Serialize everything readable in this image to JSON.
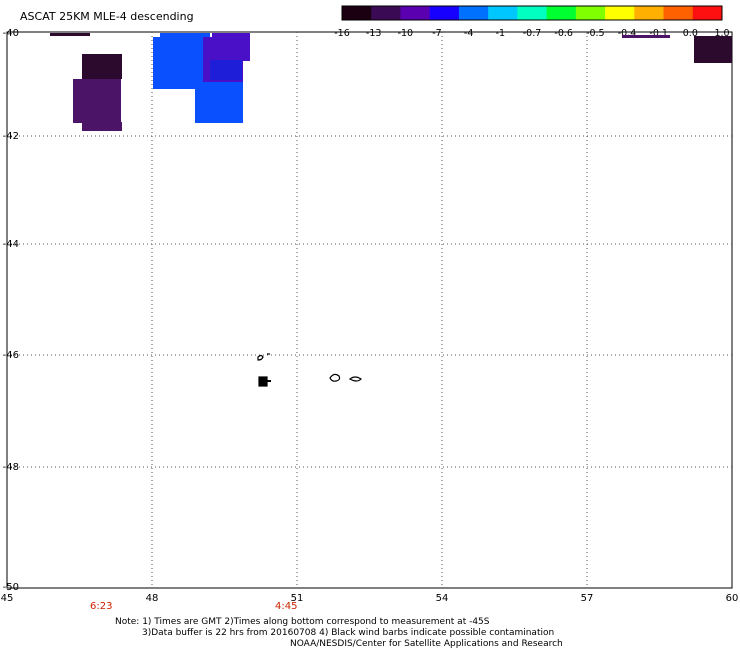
{
  "title": "ASCAT 25KM MLE-4 descending",
  "colorbar": {
    "labels": [
      "-16",
      "-13",
      "-10",
      "-7",
      "-4",
      "-1",
      "-0.7",
      "-0.6",
      "-0.5",
      "-0.4",
      "-0.1",
      "0.0",
      "1.0"
    ],
    "colors": [
      "#1a0010",
      "#3a0a55",
      "#5a00b0",
      "#1800ff",
      "#0070ff",
      "#00c8ff",
      "#00ffc0",
      "#00ff30",
      "#80ff00",
      "#ffff00",
      "#ffb000",
      "#ff6000",
      "#ff1010"
    ]
  },
  "axes": {
    "lon_labels": [
      "45",
      "48",
      "51",
      "54",
      "57",
      "60"
    ],
    "lat_labels": [
      "-40",
      "-42",
      "-44",
      "-46",
      "-48",
      "-50"
    ]
  },
  "times": [
    "6:23",
    "4:45"
  ],
  "notes": [
    "Note: 1) Times are GMT 2)Times along bottom correspond to measurement at -45S",
    "3)Data buffer is 22 hrs from 20160708 4) Black wind barbs indicate possible contamination",
    "NOAA/NESDIS/Center for Satellite Applications and Research"
  ],
  "data_colors": {
    "dark_purple": "#2b0a2e",
    "purple": "#4b1466",
    "blue": "#0a50ff",
    "violet": "#4a10c8",
    "dark_blue": "#1e1ed8"
  }
}
